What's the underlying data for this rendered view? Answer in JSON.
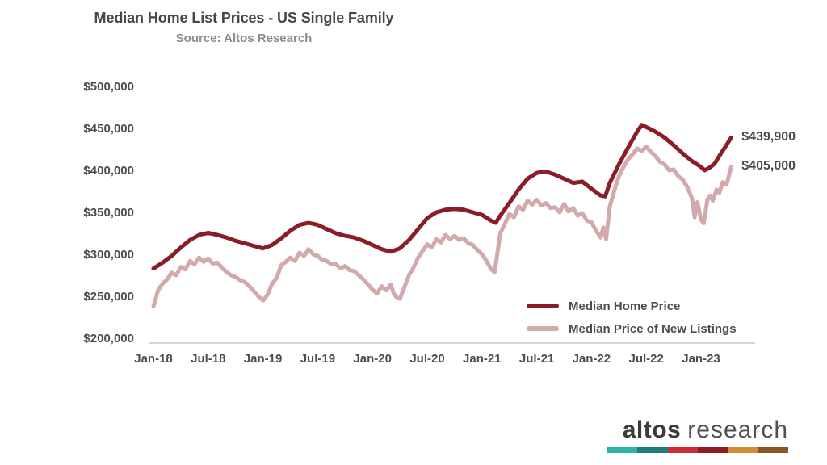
{
  "chart_data": {
    "type": "line",
    "title": "Median Home List Prices - US Single Family",
    "subtitle": "Source: Altos Research",
    "grid": false,
    "legend_position": "inside-bottom-right",
    "x_axis": {
      "unit": "months since Jan-2018",
      "ticks": [
        {
          "label": "Jan-18",
          "month": 0
        },
        {
          "label": "Jul-18",
          "month": 6
        },
        {
          "label": "Jan-19",
          "month": 12
        },
        {
          "label": "Jul-19",
          "month": 18
        },
        {
          "label": "Jan-20",
          "month": 24
        },
        {
          "label": "Jul-20",
          "month": 30
        },
        {
          "label": "Jan-21",
          "month": 36
        },
        {
          "label": "Jul-21",
          "month": 42
        },
        {
          "label": "Jan-22",
          "month": 48
        },
        {
          "label": "Jul-22",
          "month": 54
        },
        {
          "label": "Jan-23",
          "month": 60
        }
      ]
    },
    "y_axis": {
      "range": [
        200000,
        500000
      ],
      "ticks": [
        {
          "label": "$500,000",
          "value": 500000
        },
        {
          "label": "$450,000",
          "value": 450000
        },
        {
          "label": "$400,000",
          "value": 400000
        },
        {
          "label": "$350,000",
          "value": 350000
        },
        {
          "label": "$300,000",
          "value": 300000
        },
        {
          "label": "$250,000",
          "value": 250000
        },
        {
          "label": "$200,000",
          "value": 200000
        }
      ]
    },
    "series": [
      {
        "name": "Median Home Price",
        "color": "#8B1D28",
        "end_label": "$439,900",
        "last_value": 439900,
        "points": [
          [
            0,
            284000
          ],
          [
            1,
            291000
          ],
          [
            2,
            299000
          ],
          [
            3,
            309000
          ],
          [
            4,
            318000
          ],
          [
            5,
            324000
          ],
          [
            6,
            326500
          ],
          [
            7,
            324000
          ],
          [
            8,
            321000
          ],
          [
            9,
            317000
          ],
          [
            10,
            314000
          ],
          [
            11,
            311000
          ],
          [
            12,
            308000
          ],
          [
            13,
            312000
          ],
          [
            14,
            320000
          ],
          [
            15,
            329000
          ],
          [
            16,
            336000
          ],
          [
            17,
            338500
          ],
          [
            18,
            336000
          ],
          [
            19,
            331000
          ],
          [
            20,
            326000
          ],
          [
            21,
            323000
          ],
          [
            22,
            321000
          ],
          [
            23,
            317000
          ],
          [
            24,
            312000
          ],
          [
            25,
            307000
          ],
          [
            26,
            304000
          ],
          [
            27,
            308000
          ],
          [
            28,
            318000
          ],
          [
            29,
            331000
          ],
          [
            30,
            344000
          ],
          [
            31,
            351000
          ],
          [
            32,
            354000
          ],
          [
            33,
            355000
          ],
          [
            34,
            354000
          ],
          [
            35,
            351000
          ],
          [
            36,
            348000
          ],
          [
            37,
            341000
          ],
          [
            37.5,
            338500
          ],
          [
            38,
            347000
          ],
          [
            39,
            362000
          ],
          [
            40,
            378000
          ],
          [
            41,
            391000
          ],
          [
            42,
            398000
          ],
          [
            43,
            399500
          ],
          [
            44,
            396000
          ],
          [
            45,
            391000
          ],
          [
            46,
            386000
          ],
          [
            47,
            387500
          ],
          [
            48,
            379000
          ],
          [
            49,
            371000
          ],
          [
            49.5,
            370000
          ],
          [
            50,
            386000
          ],
          [
            51,
            408000
          ],
          [
            52,
            428000
          ],
          [
            53,
            447000
          ],
          [
            53.5,
            455000
          ],
          [
            54,
            452500
          ],
          [
            55,
            447000
          ],
          [
            56,
            440000
          ],
          [
            57,
            431000
          ],
          [
            58,
            421000
          ],
          [
            59,
            412000
          ],
          [
            60,
            405000
          ],
          [
            60.4,
            401000
          ],
          [
            61,
            404500
          ],
          [
            61.5,
            409000
          ],
          [
            62,
            418000
          ],
          [
            62.7,
            429500
          ],
          [
            63.3,
            439900
          ]
        ]
      },
      {
        "name": "Median Price of New Listings",
        "color": "#D3AAAC",
        "end_label": "$405,000",
        "last_value": 405000,
        "points": [
          [
            0,
            239000
          ],
          [
            0.5,
            258000
          ],
          [
            1,
            266000
          ],
          [
            1.5,
            271000
          ],
          [
            2,
            279000
          ],
          [
            2.5,
            276000
          ],
          [
            3,
            286000
          ],
          [
            3.5,
            283000
          ],
          [
            4,
            293000
          ],
          [
            4.5,
            289000
          ],
          [
            5,
            297000
          ],
          [
            5.5,
            292000
          ],
          [
            6,
            296000
          ],
          [
            6.5,
            290000
          ],
          [
            7,
            291000
          ],
          [
            7.5,
            285000
          ],
          [
            8,
            280000
          ],
          [
            8.5,
            276000
          ],
          [
            9,
            274000
          ],
          [
            9.5,
            270000
          ],
          [
            10,
            268000
          ],
          [
            10.5,
            263000
          ],
          [
            11,
            257000
          ],
          [
            11.5,
            251000
          ],
          [
            12,
            246000
          ],
          [
            12.5,
            253000
          ],
          [
            13,
            266000
          ],
          [
            13.5,
            273000
          ],
          [
            14,
            288000
          ],
          [
            14.5,
            292000
          ],
          [
            15,
            297000
          ],
          [
            15.5,
            293000
          ],
          [
            16,
            303000
          ],
          [
            16.5,
            299000
          ],
          [
            17,
            307000
          ],
          [
            17.5,
            301000
          ],
          [
            18,
            299000
          ],
          [
            18.5,
            294000
          ],
          [
            19,
            293000
          ],
          [
            19.5,
            289000
          ],
          [
            20,
            289000
          ],
          [
            20.5,
            284000
          ],
          [
            21,
            287000
          ],
          [
            21.5,
            282000
          ],
          [
            22,
            281000
          ],
          [
            22.5,
            276000
          ],
          [
            23,
            271000
          ],
          [
            23.5,
            265000
          ],
          [
            24,
            259000
          ],
          [
            24.5,
            254000
          ],
          [
            25,
            263000
          ],
          [
            25.5,
            258000
          ],
          [
            26,
            265000
          ],
          [
            26.3,
            255000
          ],
          [
            26.6,
            250000
          ],
          [
            27,
            248000
          ],
          [
            27.5,
            262000
          ],
          [
            28,
            276000
          ],
          [
            28.5,
            285000
          ],
          [
            29,
            297000
          ],
          [
            29.5,
            305000
          ],
          [
            30,
            313000
          ],
          [
            30.5,
            309000
          ],
          [
            31,
            319000
          ],
          [
            31.5,
            315000
          ],
          [
            32,
            324000
          ],
          [
            32.5,
            319000
          ],
          [
            33,
            323000
          ],
          [
            33.5,
            318000
          ],
          [
            34,
            320000
          ],
          [
            34.5,
            314000
          ],
          [
            35,
            312000
          ],
          [
            35.5,
            306000
          ],
          [
            36,
            301000
          ],
          [
            36.5,
            293000
          ],
          [
            37,
            283000
          ],
          [
            37.4,
            280000
          ],
          [
            38,
            326000
          ],
          [
            38.5,
            337000
          ],
          [
            39,
            349000
          ],
          [
            39.5,
            345000
          ],
          [
            40,
            358000
          ],
          [
            40.5,
            354000
          ],
          [
            41,
            365000
          ],
          [
            41.5,
            360000
          ],
          [
            42,
            366000
          ],
          [
            42.5,
            359000
          ],
          [
            43,
            362000
          ],
          [
            43.5,
            356000
          ],
          [
            44,
            357000
          ],
          [
            44.5,
            351000
          ],
          [
            45,
            361000
          ],
          [
            45.5,
            352000
          ],
          [
            46,
            356000
          ],
          [
            46.5,
            347000
          ],
          [
            47,
            350000
          ],
          [
            47.5,
            341000
          ],
          [
            48,
            339000
          ],
          [
            48.5,
            329000
          ],
          [
            49,
            321000
          ],
          [
            49.3,
            333000
          ],
          [
            49.6,
            319000
          ],
          [
            50,
            358000
          ],
          [
            50.5,
            377000
          ],
          [
            51,
            394000
          ],
          [
            51.5,
            405000
          ],
          [
            52,
            414000
          ],
          [
            52.5,
            420000
          ],
          [
            53,
            427000
          ],
          [
            53.5,
            424000
          ],
          [
            54,
            429000
          ],
          [
            54.5,
            423000
          ],
          [
            55,
            418000
          ],
          [
            55.5,
            411000
          ],
          [
            56,
            408000
          ],
          [
            56.5,
            401000
          ],
          [
            57,
            402000
          ],
          [
            57.5,
            394000
          ],
          [
            58,
            390000
          ],
          [
            58.5,
            381000
          ],
          [
            59,
            368000
          ],
          [
            59.3,
            345000
          ],
          [
            59.6,
            363000
          ],
          [
            60,
            342000
          ],
          [
            60.3,
            338000
          ],
          [
            60.7,
            366000
          ],
          [
            61,
            371000
          ],
          [
            61.3,
            365000
          ],
          [
            61.7,
            378000
          ],
          [
            62,
            374000
          ],
          [
            62.4,
            387000
          ],
          [
            62.8,
            384000
          ],
          [
            63,
            392000
          ],
          [
            63.3,
            405000
          ]
        ]
      }
    ]
  },
  "logo": {
    "word1": "altos",
    "word2": "research",
    "bar_colors": [
      "#2FB3A7",
      "#1F7D7C",
      "#CC2E38",
      "#8B1D26",
      "#D08F31",
      "#875822"
    ]
  }
}
